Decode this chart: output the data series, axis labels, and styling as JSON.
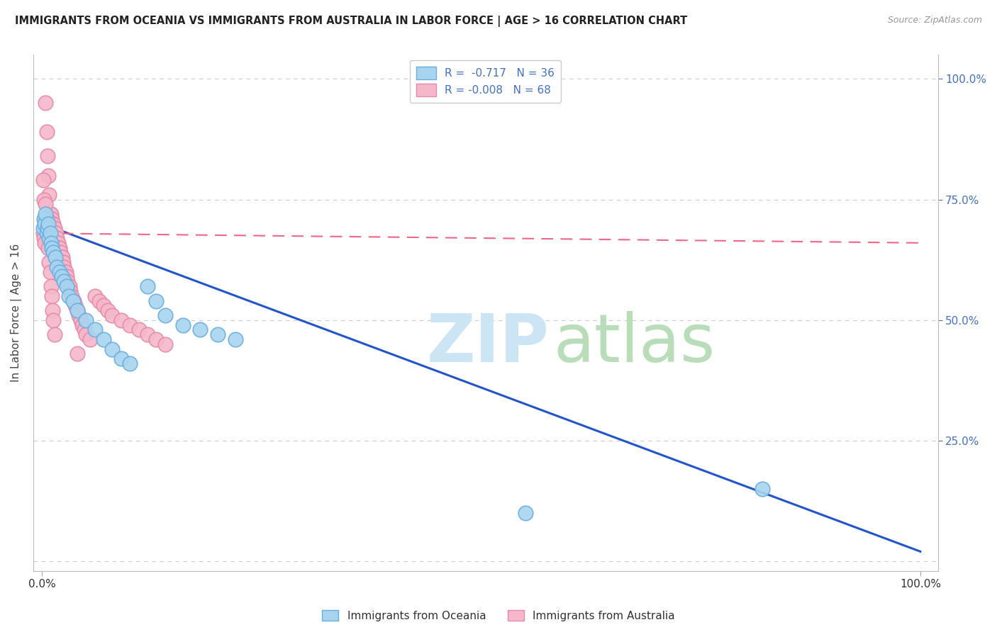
{
  "title": "IMMIGRANTS FROM OCEANIA VS IMMIGRANTS FROM AUSTRALIA IN LABOR FORCE | AGE > 16 CORRELATION CHART",
  "source": "Source: ZipAtlas.com",
  "ylabel": "In Labor Force | Age > 16",
  "legend_label_oceania": "R =  -0.717   N = 36",
  "legend_label_australia": "R = -0.008   N = 68",
  "bottom_legend_oceania": "Immigrants from Oceania",
  "bottom_legend_australia": "Immigrants from Australia",
  "oceania_face": "#a8d4ef",
  "oceania_edge": "#6aaedf",
  "australia_face": "#f5b8cb",
  "australia_edge": "#e888a8",
  "regline_oceania_color": "#2255cc",
  "regline_australia_color": "#ee6688",
  "background_color": "#ffffff",
  "grid_color": "#cccccc",
  "tick_color_right": "#4472c4",
  "watermark_zip_color": "#cce5f5",
  "watermark_atlas_color": "#b8ddb8",
  "oceania_x": [
    0.001,
    0.002,
    0.003,
    0.004,
    0.005,
    0.006,
    0.007,
    0.008,
    0.009,
    0.01,
    0.011,
    0.013,
    0.015,
    0.017,
    0.02,
    0.022,
    0.025,
    0.028,
    0.03,
    0.035,
    0.04,
    0.05,
    0.06,
    0.07,
    0.08,
    0.09,
    0.1,
    0.12,
    0.13,
    0.14,
    0.16,
    0.18,
    0.2,
    0.22,
    0.55,
    0.82
  ],
  "oceania_y": [
    0.69,
    0.71,
    0.7,
    0.72,
    0.68,
    0.69,
    0.7,
    0.67,
    0.68,
    0.66,
    0.65,
    0.64,
    0.63,
    0.61,
    0.6,
    0.59,
    0.58,
    0.57,
    0.55,
    0.54,
    0.52,
    0.5,
    0.48,
    0.46,
    0.44,
    0.42,
    0.41,
    0.57,
    0.54,
    0.51,
    0.49,
    0.48,
    0.47,
    0.46,
    0.1,
    0.15
  ],
  "australia_x": [
    0.001,
    0.002,
    0.003,
    0.004,
    0.005,
    0.006,
    0.007,
    0.008,
    0.009,
    0.01,
    0.011,
    0.012,
    0.013,
    0.014,
    0.015,
    0.016,
    0.017,
    0.018,
    0.019,
    0.02,
    0.021,
    0.022,
    0.023,
    0.024,
    0.025,
    0.026,
    0.027,
    0.028,
    0.029,
    0.03,
    0.031,
    0.032,
    0.034,
    0.036,
    0.038,
    0.04,
    0.042,
    0.044,
    0.046,
    0.048,
    0.05,
    0.055,
    0.06,
    0.065,
    0.07,
    0.075,
    0.08,
    0.09,
    0.1,
    0.11,
    0.12,
    0.13,
    0.14,
    0.001,
    0.002,
    0.003,
    0.004,
    0.005,
    0.006,
    0.007,
    0.008,
    0.009,
    0.01,
    0.011,
    0.012,
    0.013,
    0.014,
    0.04
  ],
  "australia_y": [
    0.68,
    0.67,
    0.66,
    0.95,
    0.89,
    0.84,
    0.8,
    0.76,
    0.72,
    0.72,
    0.71,
    0.7,
    0.7,
    0.69,
    0.68,
    0.68,
    0.67,
    0.66,
    0.65,
    0.65,
    0.64,
    0.63,
    0.63,
    0.62,
    0.61,
    0.6,
    0.6,
    0.59,
    0.58,
    0.57,
    0.57,
    0.56,
    0.55,
    0.54,
    0.53,
    0.52,
    0.51,
    0.5,
    0.49,
    0.48,
    0.47,
    0.46,
    0.55,
    0.54,
    0.53,
    0.52,
    0.51,
    0.5,
    0.49,
    0.48,
    0.47,
    0.46,
    0.45,
    0.79,
    0.75,
    0.71,
    0.74,
    0.71,
    0.68,
    0.65,
    0.62,
    0.6,
    0.57,
    0.55,
    0.52,
    0.5,
    0.47,
    0.43
  ],
  "xlim": [
    0.0,
    1.0
  ],
  "ylim": [
    0.0,
    1.0
  ],
  "yticks": [
    0.0,
    0.25,
    0.5,
    0.75,
    1.0
  ],
  "xticks": [
    0.0,
    1.0
  ]
}
